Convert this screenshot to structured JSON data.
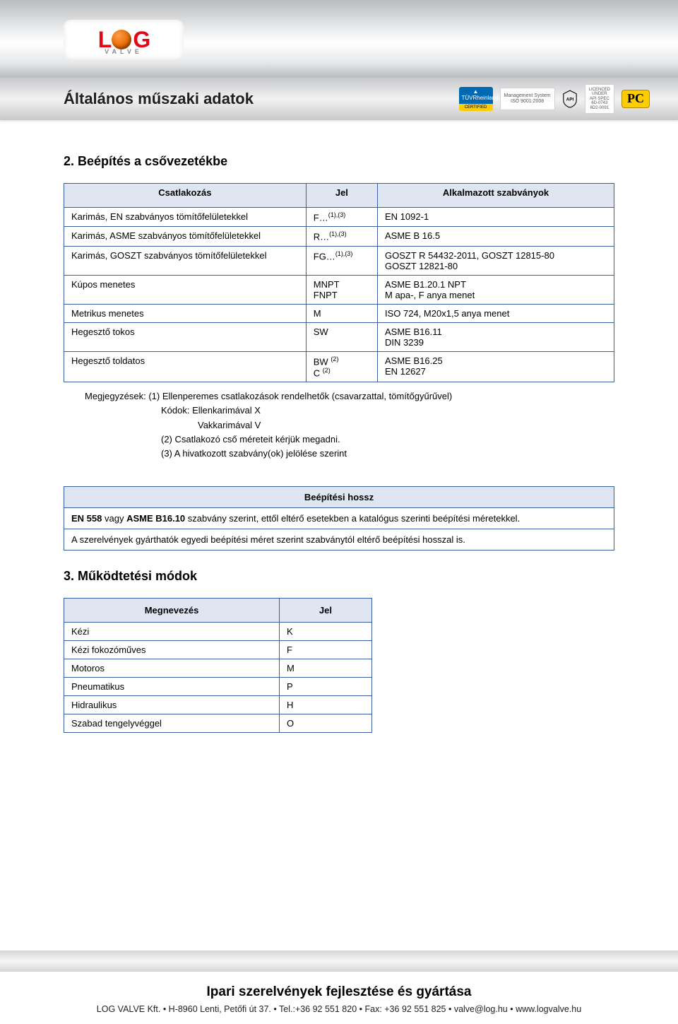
{
  "header": {
    "logo_l": "L",
    "logo_g": "G",
    "logo_sub": "VALVE"
  },
  "title_band": {
    "title": "Általános műszaki adatok",
    "certs": {
      "tuv_top": "TÜVRheinland",
      "tuv_bot": "CERTIFIED",
      "mgmt1": "Management System",
      "mgmt2": "ISO 9001:2008",
      "api_lic1": "LICENCED",
      "api_lic2": "UNDER",
      "api_lic3": "API SPEC",
      "api_lic4": "6D-0743",
      "api_lic5": "6D2-0091",
      "pc": "PC"
    }
  },
  "section2": {
    "heading": "2. Beépítés a csővezetékbe",
    "headers": {
      "c0": "Csatlakozás",
      "c1": "Jel",
      "c2": "Alkalmazott szabványok"
    },
    "rows": [
      {
        "c0": "Karimás, EN szabványos tömítőfelületekkel",
        "jel_pre": "F…",
        "jel_sup": "(1),(3)",
        "c2": "EN 1092-1"
      },
      {
        "c0": "Karimás, ASME szabványos tömítőfelületekkel",
        "jel_pre": "R…",
        "jel_sup": "(1),(3)",
        "c2": "ASME B 16.5"
      },
      {
        "c0": "Karimás, GOSZT szabványos tömítőfelületekkel",
        "jel_pre": "FG…",
        "jel_sup": "(1),(3)",
        "c2": "GOSZT R 54432-2011, GOSZT 12815-80\nGOSZT 12821-80"
      },
      {
        "c0": "Kúpos menetes",
        "jel_pre": "MNPT\nFNPT",
        "jel_sup": "",
        "c2": "ASME B1.20.1 NPT\nM apa-, F anya menet"
      },
      {
        "c0": "Metrikus menetes",
        "jel_pre": "M",
        "jel_sup": "",
        "c2": "ISO 724, M20x1,5 anya menet"
      },
      {
        "c0": "Hegesztő tokos",
        "jel_pre": "SW",
        "jel_sup": "",
        "c2": "ASME B16.11\nDIN 3239"
      },
      {
        "c0": "Hegesztő toldatos",
        "jel_pre": "BW ",
        "jel_sup": "(2)",
        "jel_pre2": "C ",
        "jel_sup2": "(2)",
        "c2": "ASME B16.25\nEN 12627"
      }
    ],
    "notes": {
      "l1": "Megjegyzések: (1) Ellenperemes csatlakozások rendelhetők (csavarzattal, tömítőgyűrűvel)",
      "l2": "Kódok:  Ellenkarimával     X",
      "l3": "Vakkarimával      V",
      "l4": "(2) Csatlakozó cső méreteit kérjük megadni.",
      "l5": "(3) A hivatkozott szabvány(ok) jelölése szerint"
    }
  },
  "box": {
    "header": "Beépítési hossz",
    "r1": "EN 558 vagy ASME B16.10 szabvány szerint, ettől eltérő esetekben a katalógus szerinti beépítési méretekkel.",
    "r1_bold_a": "EN 558",
    "r1_mid": " vagy ",
    "r1_bold_b": "ASME B16.10",
    "r1_rest": " szabvány szerint, ettől eltérő esetekben a katalógus szerinti beépítési méretekkel.",
    "r2": "A szerelvények gyárthatók egyedi beépítési méret szerint szabványtól eltérő beépítési hosszal is."
  },
  "section3": {
    "heading": "3. Működtetési módok",
    "headers": {
      "c0": "Megnevezés",
      "c1": "Jel"
    },
    "rows": [
      {
        "c0": "Kézi",
        "c1": "K"
      },
      {
        "c0": "Kézi fokozóműves",
        "c1": "F"
      },
      {
        "c0": "Motoros",
        "c1": "M"
      },
      {
        "c0": "Pneumatikus",
        "c1": "P"
      },
      {
        "c0": "Hidraulikus",
        "c1": "H"
      },
      {
        "c0": "Szabad tengelyvéggel",
        "c1": "O"
      }
    ]
  },
  "footer": {
    "title": "Ipari szerelvények fejlesztése és gyártása",
    "line": "LOG VALVE Kft. • H-8960 Lenti, Petőfi út 37. • Tel.:+36 92 551 820 • Fax: +36 92 551 825 • valve@log.hu • www.logvalve.hu"
  },
  "colors": {
    "border": "#3a5fa1",
    "th_bg": "#dfe6f2",
    "band_dark": "#b9bbbe",
    "logo_red": "#e30613"
  }
}
